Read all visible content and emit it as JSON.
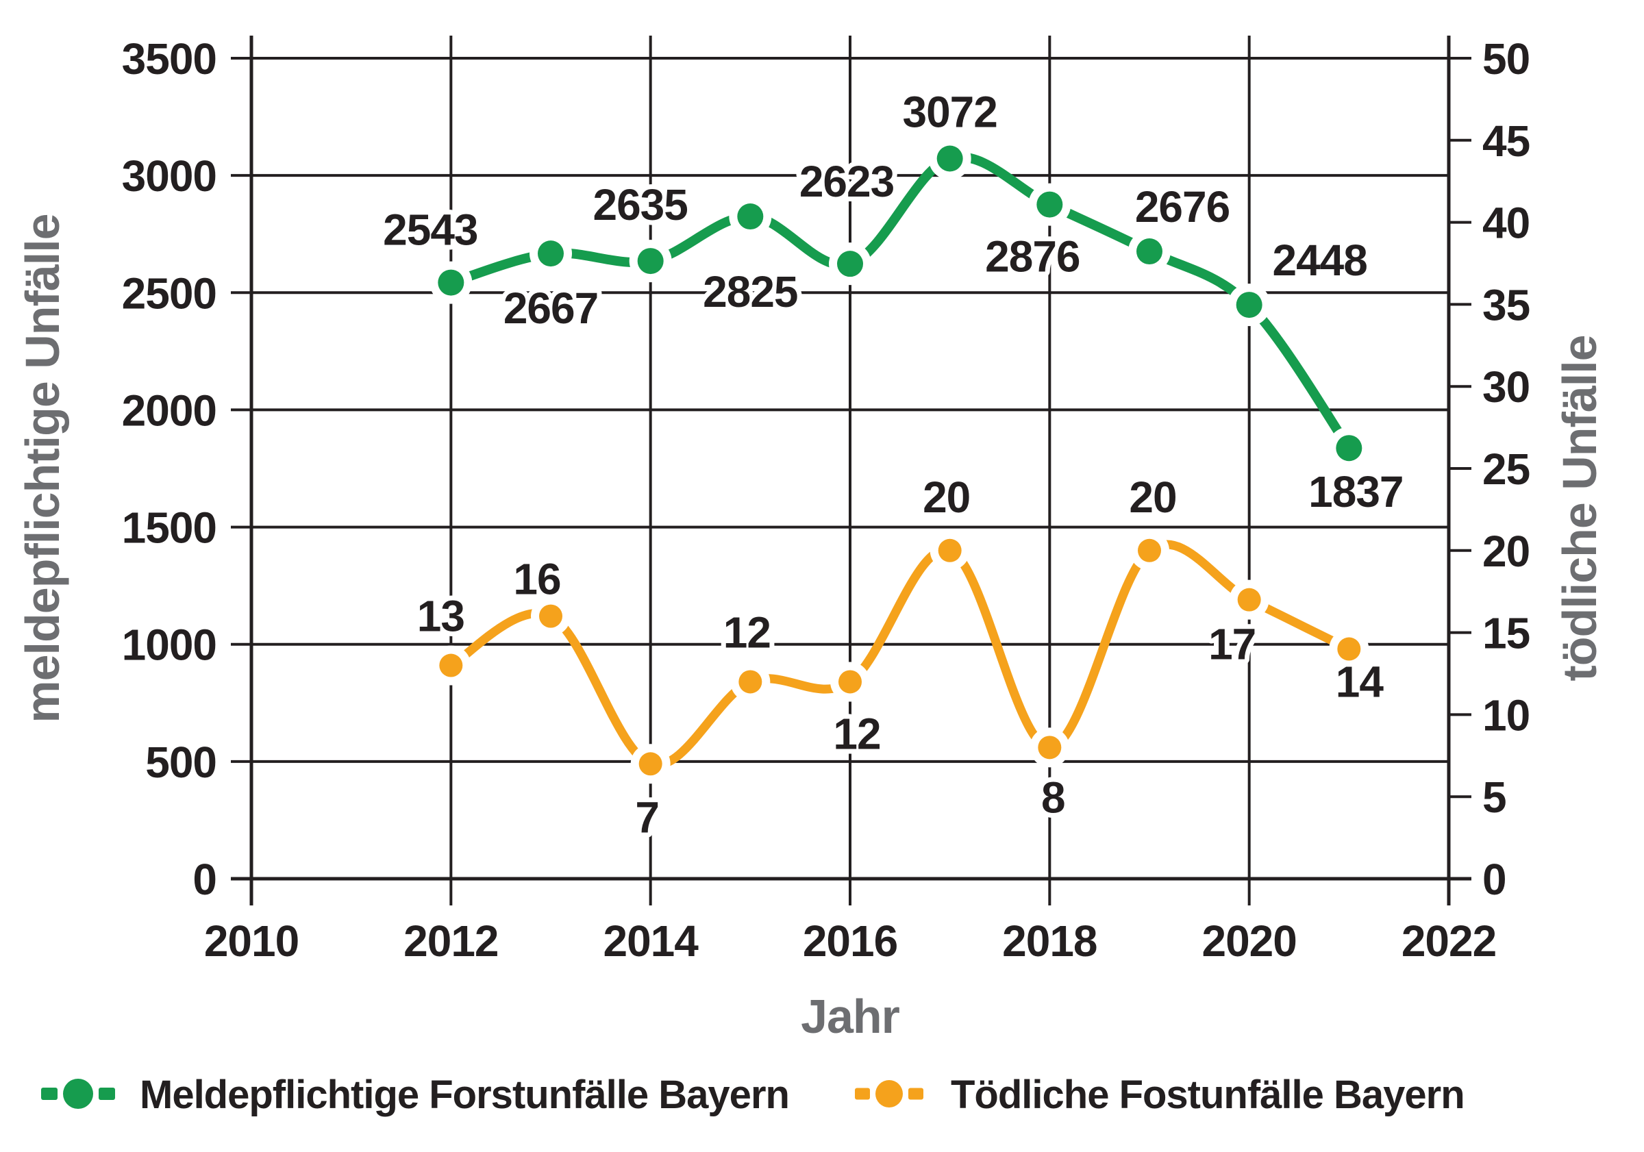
{
  "chart_data": {
    "type": "line",
    "title": "",
    "x": [
      2012,
      2013,
      2014,
      2015,
      2016,
      2017,
      2018,
      2019,
      2020,
      2021
    ],
    "x_axis": {
      "label": "Jahr",
      "range": [
        2010,
        2022
      ],
      "tick_step": 2,
      "tick_labels": [
        "2010",
        "2012",
        "2014",
        "2016",
        "2018",
        "2020",
        "2022"
      ]
    },
    "y_axis_left": {
      "label": "meldepflichtige Unfälle",
      "range": [
        0,
        3500
      ],
      "tick_step": 500,
      "tick_labels": [
        "0",
        "500",
        "1000",
        "1500",
        "2000",
        "2500",
        "3000",
        "3500"
      ]
    },
    "y_axis_right": {
      "label": "tödliche Unfälle",
      "range": [
        0,
        50
      ],
      "tick_step": 5,
      "tick_labels": [
        "0",
        "5",
        "10",
        "15",
        "20",
        "25",
        "30",
        "35",
        "40",
        "45",
        "50"
      ]
    },
    "grid": true,
    "legend_position": "bottom",
    "series": [
      {
        "name": "Meldepflichtige Forstunfälle Bayern",
        "axis": "left",
        "color": "#169c4e",
        "values": [
          2543,
          2667,
          2635,
          2825,
          2623,
          3072,
          2876,
          2676,
          2448,
          1837
        ],
        "label_offsets": [
          [
            -30,
            -55
          ],
          [
            0,
            102
          ],
          [
            -15,
            -60
          ],
          [
            0,
            132
          ],
          [
            -5,
            -98
          ],
          [
            0,
            -46
          ],
          [
            -25,
            98
          ],
          [
            48,
            -43
          ],
          [
            103,
            -43
          ],
          [
            10,
            86
          ]
        ]
      },
      {
        "name": "Tödliche Fostunfälle Bayern",
        "axis": "right",
        "color": "#f5a21c",
        "values": [
          13,
          16,
          7,
          12,
          12,
          20,
          8,
          20,
          17,
          14
        ],
        "label_offsets": [
          [
            -15,
            -50
          ],
          [
            -20,
            -32
          ],
          [
            -5,
            100
          ],
          [
            -5,
            -50
          ],
          [
            10,
            98
          ],
          [
            -5,
            -56
          ],
          [
            5,
            95
          ],
          [
            5,
            -56
          ],
          [
            -25,
            87
          ],
          [
            15,
            70
          ]
        ]
      }
    ]
  },
  "colors": {
    "series_green": "#169c4e",
    "series_orange": "#f5a21c",
    "axis_line": "#231f20",
    "tick_text": "#231f20",
    "axis_title_gray": "#6d6e71",
    "background": "#ffffff"
  }
}
